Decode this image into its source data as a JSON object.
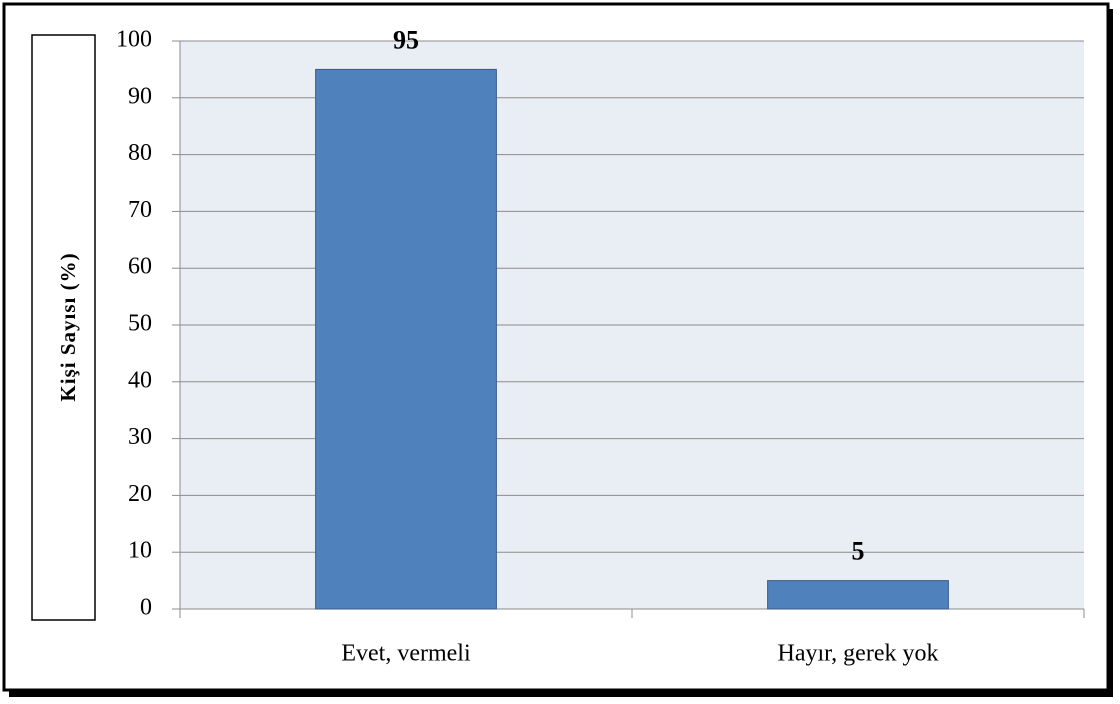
{
  "chart_data": {
    "type": "bar",
    "y_label": "Kişi Sayısı (%)",
    "categories": [
      "Evet, vermeli",
      "Hayır, gerek yok"
    ],
    "values": [
      95,
      5
    ],
    "color": "#4f81bd",
    "ylim": [
      0,
      100
    ],
    "yticks": [
      0,
      10,
      20,
      30,
      40,
      50,
      60,
      70,
      80,
      90,
      100
    ],
    "grid": true
  }
}
